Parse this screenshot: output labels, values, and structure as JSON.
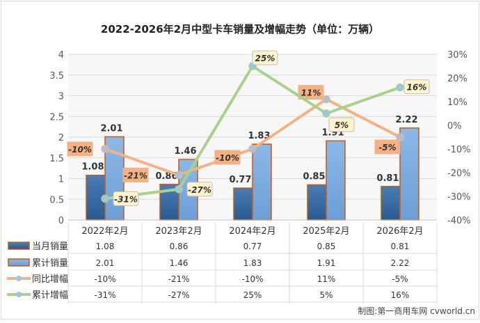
{
  "chart_data": {
    "type": "bar+line",
    "title": "2022-2026年2月中型卡车销量及增幅走势（单位：万辆）",
    "categories": [
      "2022年2月",
      "2023年2月",
      "2024年2月",
      "2025年2月",
      "2026年2月"
    ],
    "bar_series": [
      {
        "name": "当月销量",
        "values": [
          1.08,
          0.86,
          0.77,
          0.85,
          0.81
        ],
        "labels": [
          "1.08",
          "0.86",
          "0.77",
          "0.85",
          "0.81"
        ],
        "color": "#2e6096"
      },
      {
        "name": "累计销量",
        "values": [
          2.01,
          1.46,
          1.83,
          1.91,
          2.22
        ],
        "labels": [
          "2.01",
          "1.46",
          "1.83",
          "1.91",
          "2.22"
        ],
        "color": "#7eaee0"
      }
    ],
    "line_series": [
      {
        "name": "同比增幅",
        "values": [
          -10,
          -21,
          -10,
          11,
          -5
        ],
        "labels": [
          "-10%",
          "-21%",
          "-10%",
          "11%",
          "-5%"
        ],
        "color": "#f4b183"
      },
      {
        "name": "累计增幅",
        "values": [
          -31,
          -27,
          25,
          5,
          16
        ],
        "labels": [
          "-31%",
          "-27%",
          "25%",
          "5%",
          "16%"
        ],
        "color": "#a9d18e"
      }
    ],
    "y_left": {
      "ylim": [
        0,
        4
      ],
      "ticks": [
        "0",
        "0.5",
        "1",
        "1.5",
        "2",
        "2.5",
        "3",
        "3.5",
        "4"
      ]
    },
    "y_right": {
      "ylim": [
        -40,
        30
      ],
      "ticks": [
        "-40%",
        "-30%",
        "-20%",
        "-10%",
        "0%",
        "10%",
        "20%",
        "30%"
      ]
    },
    "grid": true,
    "legend": "data-table-below"
  },
  "source": "制图:第一商用车网 cvworld.cn"
}
